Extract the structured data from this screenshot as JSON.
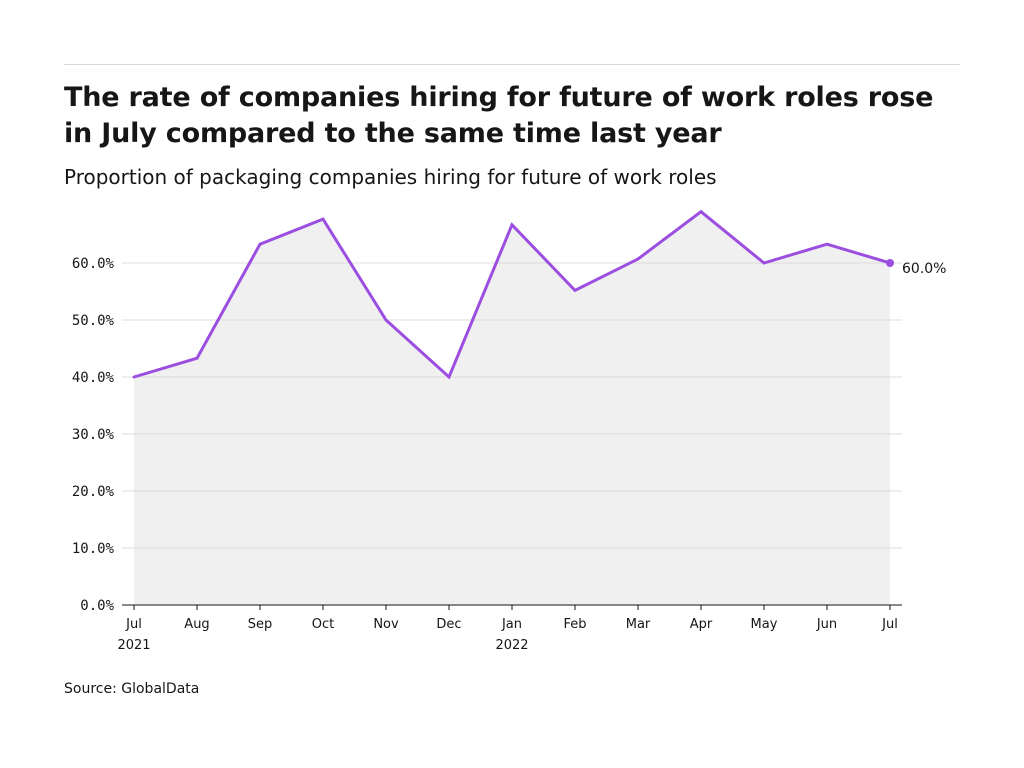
{
  "header": {
    "title": "The rate of companies hiring for future of work roles rose in July compared to the same time last year",
    "subtitle": "Proportion of packaging companies hiring for future of work roles"
  },
  "footer": {
    "source": "Source: GlobalData"
  },
  "colors": {
    "line": "#9b4ee0",
    "area": "#f0f0f0",
    "grid": "#dcdcdc",
    "axis": "#161616"
  },
  "chart_data": {
    "type": "area",
    "title": "The rate of companies hiring for future of work roles rose in July compared to the same time last year",
    "subtitle": "Proportion of packaging companies hiring for future of work roles",
    "xlabel": "",
    "ylabel": "",
    "ylim": [
      0,
      70
    ],
    "y_ticks": [
      0,
      10,
      20,
      30,
      40,
      50,
      60
    ],
    "y_tick_labels": [
      "0.0%",
      "10.0%",
      "20.0%",
      "30.0%",
      "40.0%",
      "50.0%",
      "60.0%"
    ],
    "categories": [
      "Jul",
      "Aug",
      "Sep",
      "Oct",
      "Nov",
      "Dec",
      "Jan",
      "Feb",
      "Mar",
      "Apr",
      "May",
      "Jun",
      "Jul"
    ],
    "category_years": [
      "2021",
      "",
      "",
      "",
      "",
      "",
      "2022",
      "",
      "",
      "",
      "",
      "",
      ""
    ],
    "series": [
      {
        "values": [
          40.0,
          43.3,
          63.3,
          67.7,
          50.0,
          40.0,
          66.7,
          55.2,
          60.7,
          69.0,
          60.0,
          63.3,
          60.0
        ]
      }
    ],
    "end_label": "60.0%",
    "grid": true,
    "legend": "none"
  }
}
